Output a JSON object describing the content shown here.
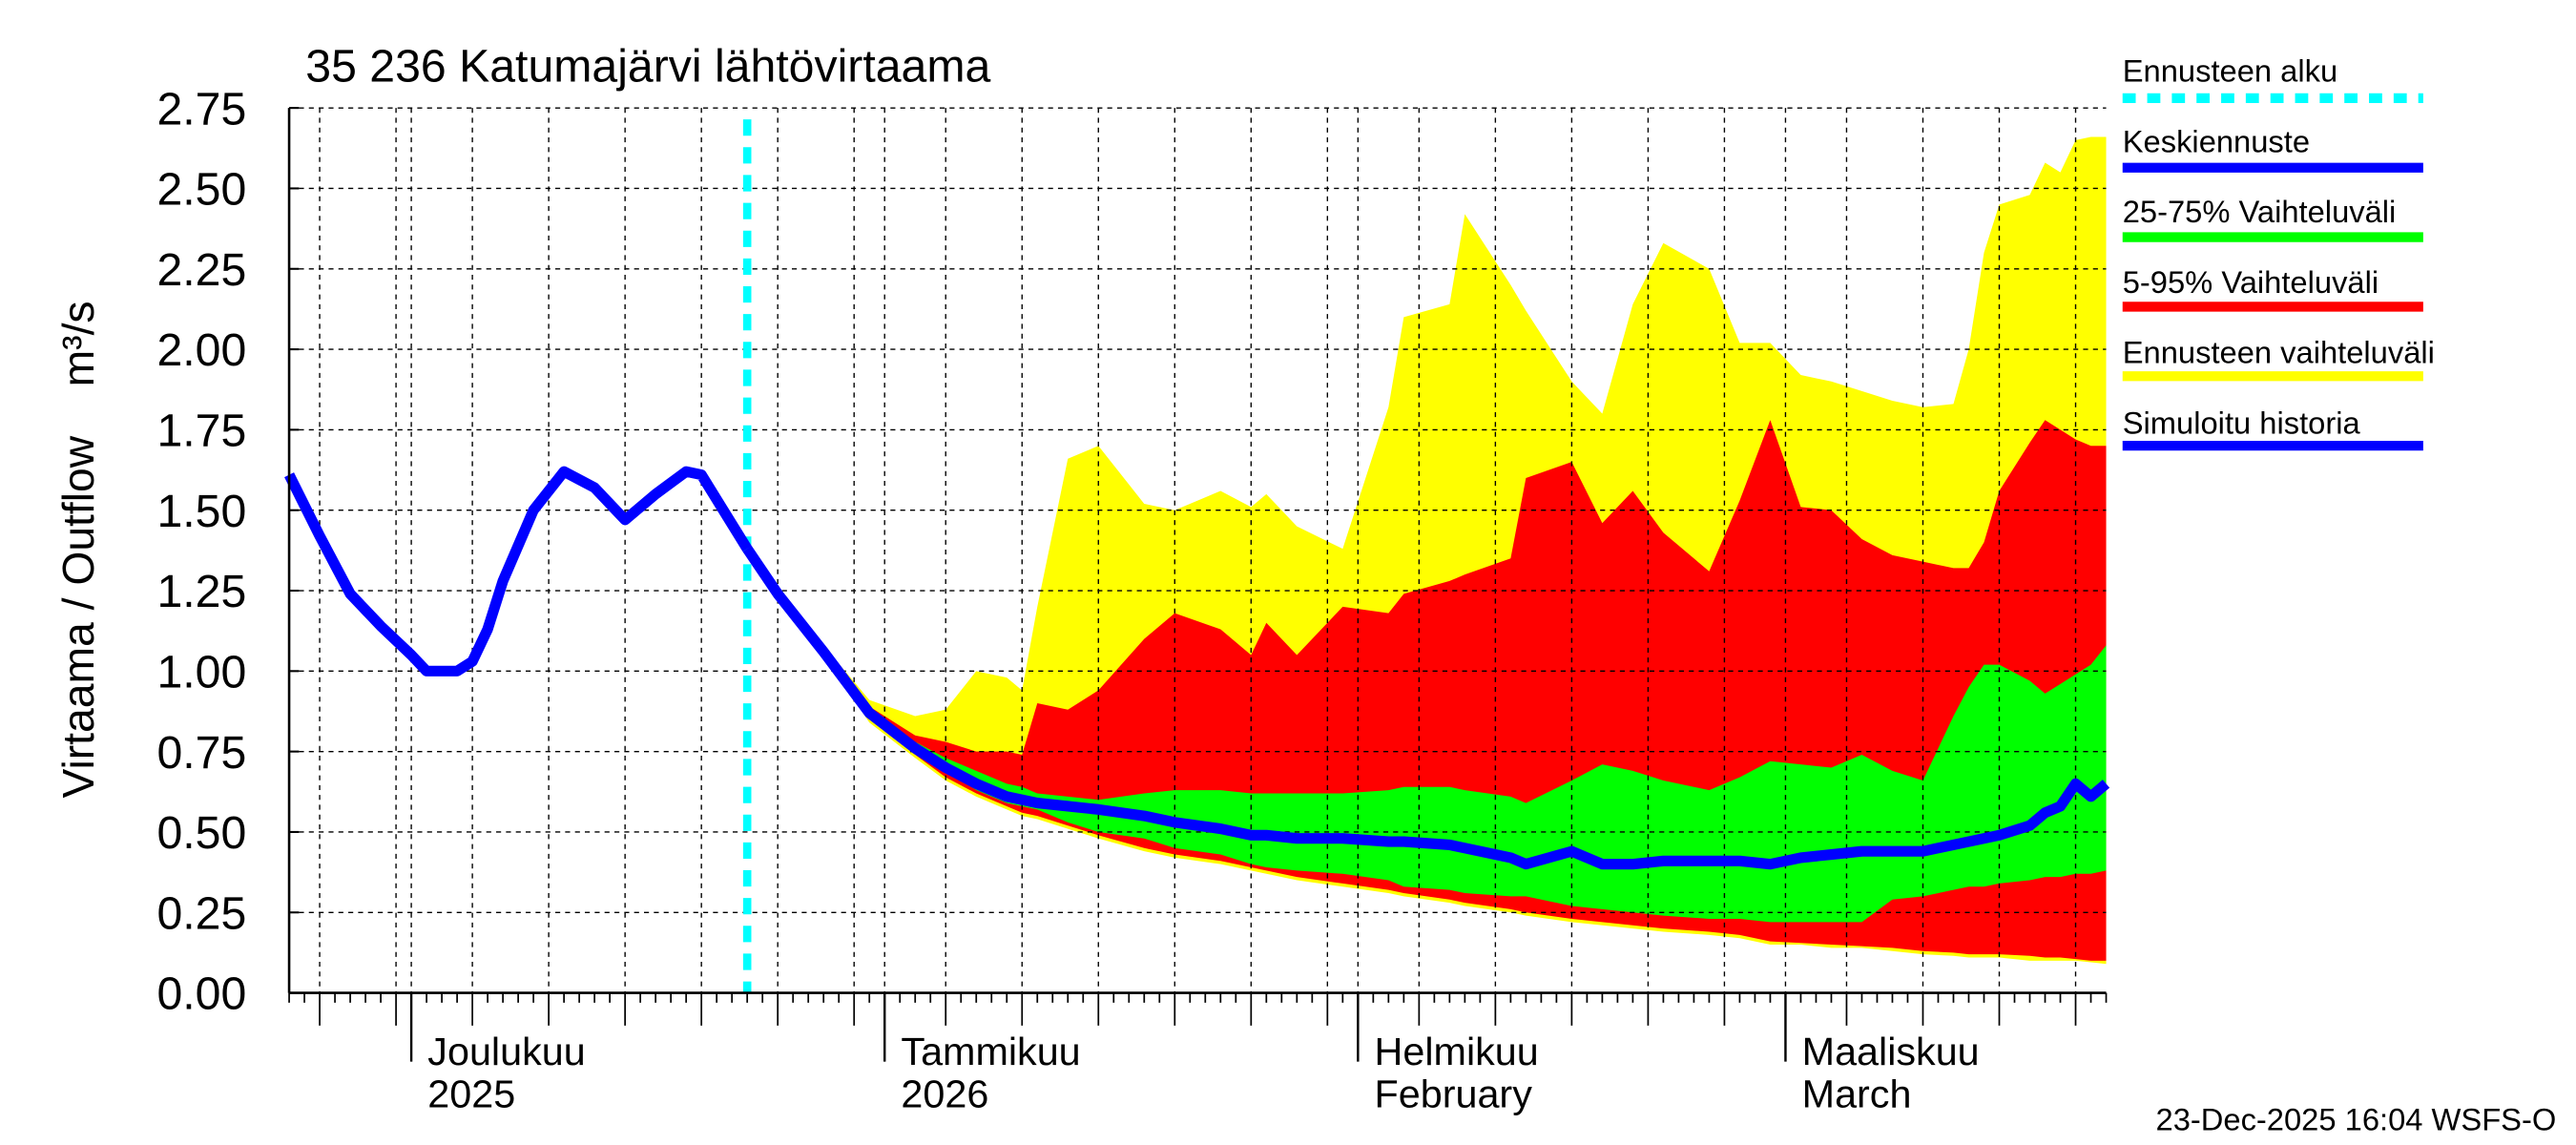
{
  "chart_data": {
    "type": "area",
    "title": "35 236 Katumajärvi lähtövirtaama",
    "ylabel": "Virtaama / Outflow    m³/s",
    "xlim": [
      "2025-11-23",
      "2026-03-22"
    ],
    "ylim": [
      0,
      2.75
    ],
    "yticks": [
      "0.00",
      "0.25",
      "0.50",
      "0.75",
      "1.00",
      "1.25",
      "1.50",
      "1.75",
      "2.00",
      "2.25",
      "2.50",
      "2.75"
    ],
    "grid": true,
    "legend_position": "right",
    "month_labels": [
      {
        "date": "2025-12-01",
        "line1": "Joulukuu",
        "line2": "2025"
      },
      {
        "date": "2026-01-01",
        "line1": "Tammikuu",
        "line2": "2026"
      },
      {
        "date": "2026-02-01",
        "line1": "Helmikuu",
        "line2": "February"
      },
      {
        "date": "2026-03-01",
        "line1": "Maaliskuu",
        "line2": "March"
      }
    ],
    "forecast_start": "2025-12-23",
    "colors": {
      "forecast_start": "#00ffff",
      "median": "#0000ff",
      "p25_75": "#00ff00",
      "p5_95": "#ff0000",
      "range": "#ffff00",
      "history": "#0000ff"
    },
    "legend": [
      {
        "key": "forecast_start",
        "label": "Ennusteen alku",
        "style": "dashed"
      },
      {
        "key": "median",
        "label": "Keskiennuste",
        "style": "solid"
      },
      {
        "key": "p25_75",
        "label": "25-75% Vaihteluväli",
        "style": "solid"
      },
      {
        "key": "p5_95",
        "label": "5-95% Vaihteluväli",
        "style": "solid"
      },
      {
        "key": "range",
        "label": "Ennusteen vaihteluväli",
        "style": "solid"
      },
      {
        "key": "history",
        "label": "Simuloitu historia",
        "style": "solid"
      }
    ],
    "history": [
      [
        "2025-11-23",
        1.61
      ],
      [
        "2025-11-25",
        1.42
      ],
      [
        "2025-11-27",
        1.24
      ],
      [
        "2025-11-29",
        1.14
      ],
      [
        "2025-12-01",
        1.05
      ],
      [
        "2025-12-02",
        1.0
      ],
      [
        "2025-12-04",
        1.0
      ],
      [
        "2025-12-05",
        1.03
      ],
      [
        "2025-12-06",
        1.13
      ],
      [
        "2025-12-07",
        1.28
      ],
      [
        "2025-12-09",
        1.5
      ],
      [
        "2025-12-11",
        1.62
      ],
      [
        "2025-12-13",
        1.57
      ],
      [
        "2025-12-15",
        1.47
      ],
      [
        "2025-12-17",
        1.55
      ],
      [
        "2025-12-19",
        1.62
      ],
      [
        "2025-12-20",
        1.61
      ],
      [
        "2025-12-23",
        1.38
      ]
    ],
    "forecast_columns": [
      "date",
      "min",
      "p5",
      "p25",
      "median",
      "p75",
      "p95",
      "max"
    ],
    "forecast": [
      [
        "2025-12-23",
        1.38,
        1.38,
        1.38,
        1.38,
        1.38,
        1.38,
        1.38
      ],
      [
        "2025-12-25",
        1.24,
        1.24,
        1.24,
        1.24,
        1.24,
        1.24,
        1.25
      ],
      [
        "2025-12-28",
        1.05,
        1.05,
        1.06,
        1.06,
        1.06,
        1.07,
        1.08
      ],
      [
        "2025-12-31",
        0.84,
        0.85,
        0.86,
        0.87,
        0.88,
        0.89,
        0.91
      ],
      [
        "2026-01-03",
        0.73,
        0.74,
        0.75,
        0.76,
        0.78,
        0.8,
        0.86
      ],
      [
        "2026-01-05",
        0.66,
        0.67,
        0.69,
        0.7,
        0.73,
        0.78,
        0.88
      ],
      [
        "2026-01-07",
        0.61,
        0.62,
        0.63,
        0.65,
        0.69,
        0.75,
        1.0
      ],
      [
        "2026-01-09",
        0.57,
        0.58,
        0.59,
        0.61,
        0.65,
        0.75,
        0.98
      ],
      [
        "2026-01-10",
        0.55,
        0.56,
        0.58,
        0.6,
        0.64,
        0.74,
        0.94
      ],
      [
        "2026-01-11",
        0.54,
        0.55,
        0.57,
        0.59,
        0.62,
        0.9,
        1.2
      ],
      [
        "2026-01-13",
        0.51,
        0.52,
        0.53,
        0.58,
        0.61,
        0.88,
        1.66
      ],
      [
        "2026-01-15",
        0.48,
        0.49,
        0.5,
        0.57,
        0.6,
        0.94,
        1.7
      ],
      [
        "2026-01-18",
        0.44,
        0.45,
        0.48,
        0.55,
        0.62,
        1.1,
        1.52
      ],
      [
        "2026-01-20",
        0.42,
        0.43,
        0.45,
        0.53,
        0.63,
        1.18,
        1.5
      ],
      [
        "2026-01-23",
        0.4,
        0.41,
        0.43,
        0.51,
        0.63,
        1.13,
        1.56
      ],
      [
        "2026-01-25",
        0.38,
        0.39,
        0.4,
        0.49,
        0.62,
        1.05,
        1.51
      ],
      [
        "2026-01-26",
        0.37,
        0.38,
        0.39,
        0.49,
        0.62,
        1.15,
        1.55
      ],
      [
        "2026-01-28",
        0.35,
        0.36,
        0.38,
        0.48,
        0.62,
        1.05,
        1.45
      ],
      [
        "2026-01-31",
        0.33,
        0.34,
        0.37,
        0.48,
        0.62,
        1.2,
        1.38
      ],
      [
        "2026-02-03",
        0.31,
        0.32,
        0.35,
        0.47,
        0.63,
        1.18,
        1.82
      ],
      [
        "2026-02-04",
        0.3,
        0.31,
        0.33,
        0.47,
        0.64,
        1.24,
        2.1
      ],
      [
        "2026-02-07",
        0.28,
        0.29,
        0.32,
        0.46,
        0.64,
        1.28,
        2.14
      ],
      [
        "2026-02-08",
        0.27,
        0.28,
        0.31,
        0.45,
        0.63,
        1.3,
        2.42
      ],
      [
        "2026-02-11",
        0.25,
        0.26,
        0.3,
        0.42,
        0.61,
        1.35,
        2.2
      ],
      [
        "2026-02-12",
        0.24,
        0.25,
        0.3,
        0.4,
        0.59,
        1.6,
        2.12
      ],
      [
        "2026-02-15",
        0.22,
        0.23,
        0.27,
        0.44,
        0.66,
        1.65,
        1.9
      ],
      [
        "2026-02-17",
        0.21,
        0.22,
        0.26,
        0.4,
        0.71,
        1.46,
        1.8
      ],
      [
        "2026-02-19",
        0.2,
        0.21,
        0.25,
        0.4,
        0.69,
        1.56,
        2.14
      ],
      [
        "2026-02-21",
        0.19,
        0.2,
        0.24,
        0.41,
        0.66,
        1.43,
        2.33
      ],
      [
        "2026-02-24",
        0.18,
        0.19,
        0.23,
        0.41,
        0.63,
        1.31,
        2.25
      ],
      [
        "2026-02-26",
        0.17,
        0.18,
        0.23,
        0.41,
        0.67,
        1.53,
        2.02
      ],
      [
        "2026-02-28",
        0.15,
        0.16,
        0.22,
        0.4,
        0.72,
        1.78,
        2.02
      ],
      [
        "2026-03-02",
        0.15,
        0.155,
        0.22,
        0.42,
        0.71,
        1.51,
        1.92
      ],
      [
        "2026-03-04",
        0.14,
        0.15,
        0.22,
        0.43,
        0.7,
        1.5,
        1.9
      ],
      [
        "2026-03-06",
        0.14,
        0.145,
        0.22,
        0.44,
        0.74,
        1.41,
        1.87
      ],
      [
        "2026-03-08",
        0.13,
        0.14,
        0.29,
        0.44,
        0.69,
        1.36,
        1.84
      ],
      [
        "2026-03-10",
        0.12,
        0.13,
        0.3,
        0.44,
        0.66,
        1.34,
        1.82
      ],
      [
        "2026-03-12",
        0.115,
        0.125,
        0.32,
        0.46,
        0.86,
        1.32,
        1.83
      ],
      [
        "2026-03-13",
        0.11,
        0.12,
        0.33,
        0.47,
        0.95,
        1.32,
        2.0
      ],
      [
        "2026-03-14",
        0.11,
        0.12,
        0.33,
        0.48,
        1.02,
        1.4,
        2.3
      ],
      [
        "2026-03-15",
        0.11,
        0.12,
        0.34,
        0.49,
        1.02,
        1.56,
        2.45
      ],
      [
        "2026-03-17",
        0.1,
        0.115,
        0.35,
        0.52,
        0.97,
        1.71,
        2.48
      ],
      [
        "2026-03-18",
        0.1,
        0.11,
        0.36,
        0.56,
        0.93,
        1.78,
        2.58
      ],
      [
        "2026-03-19",
        0.1,
        0.11,
        0.36,
        0.58,
        0.96,
        1.75,
        2.55
      ],
      [
        "2026-03-20",
        0.1,
        0.105,
        0.37,
        0.65,
        0.99,
        1.72,
        2.65
      ],
      [
        "2026-03-21",
        0.095,
        0.1,
        0.37,
        0.61,
        1.02,
        1.7,
        2.66
      ],
      [
        "2026-03-22",
        0.09,
        0.1,
        0.38,
        0.65,
        1.08,
        1.7,
        2.66
      ]
    ]
  },
  "footer": "23-Dec-2025 16:04 WSFS-O"
}
